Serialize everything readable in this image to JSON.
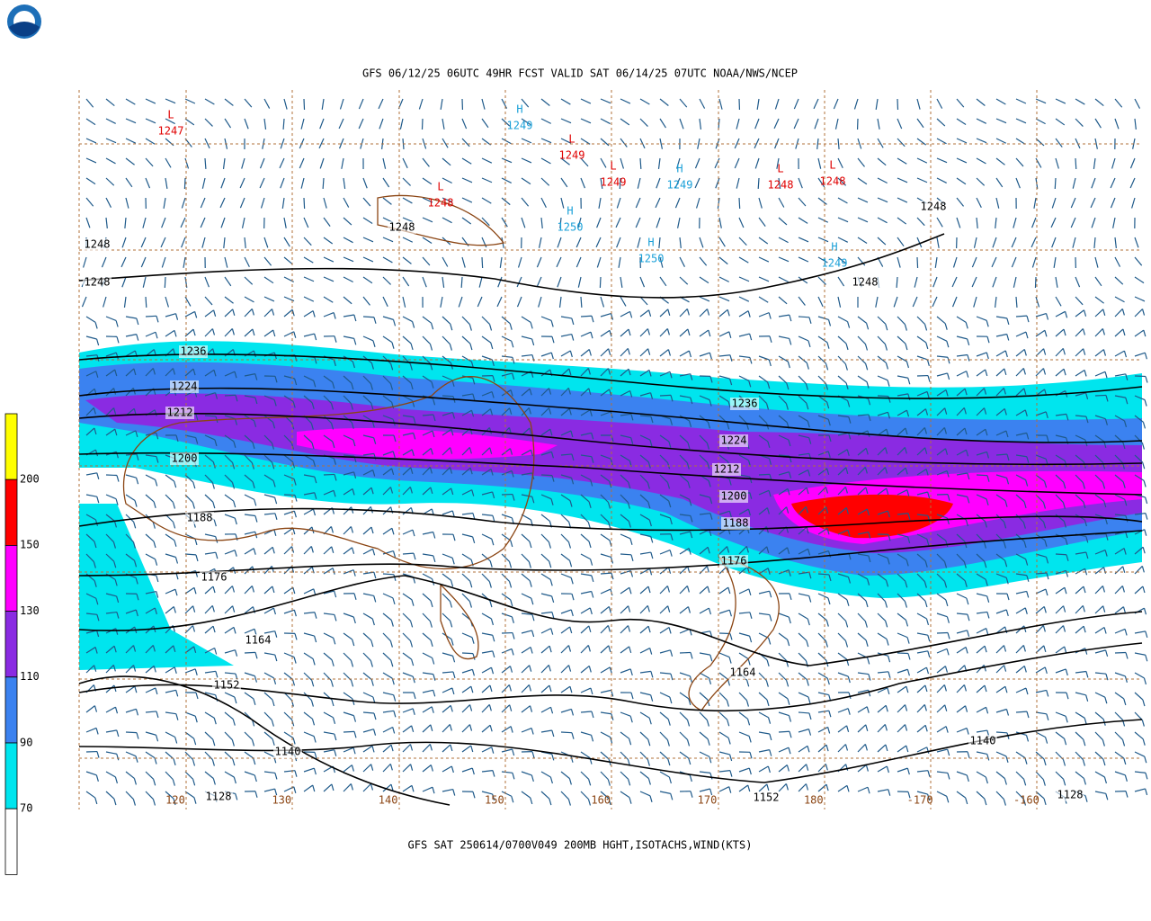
{
  "header": {
    "title": "GFS 06/12/25 06UTC 49HR FCST VALID SAT 06/14/25 07UTC NOAA/NWS/NCEP"
  },
  "footer": {
    "caption": "GFS SAT 250614/0700V049 200MB HGHT,ISOTACHS,WIND(KTS)"
  },
  "legend": {
    "labels": [
      "200",
      "150",
      "130",
      "110",
      "90",
      "70"
    ]
  },
  "longitudes": [
    "120",
    "130",
    "140",
    "150",
    "160",
    "170",
    "180",
    "-170",
    "-160"
  ],
  "contour_labels": [
    "1248",
    "1248",
    "1248",
    "1248",
    "1248",
    "1236",
    "1224",
    "1212",
    "1200",
    "1188",
    "1176",
    "1164",
    "1152",
    "1140",
    "1128",
    "1236",
    "1224",
    "1212",
    "1200",
    "1188",
    "1176",
    "1164",
    "1152",
    "1140",
    "1128"
  ],
  "centers": [
    {
      "symbol": "L",
      "value": "1247"
    },
    {
      "symbol": "H",
      "value": "1249"
    },
    {
      "symbol": "L",
      "value": "1249"
    },
    {
      "symbol": "L",
      "value": "1249"
    },
    {
      "symbol": "H",
      "value": "1249"
    },
    {
      "symbol": "L",
      "value": "1248"
    },
    {
      "symbol": "L",
      "value": "1248"
    },
    {
      "symbol": "L",
      "value": "1248"
    },
    {
      "symbol": "H",
      "value": "1250"
    },
    {
      "symbol": "H",
      "value": "1250"
    },
    {
      "symbol": "H",
      "value": "1249"
    }
  ]
}
